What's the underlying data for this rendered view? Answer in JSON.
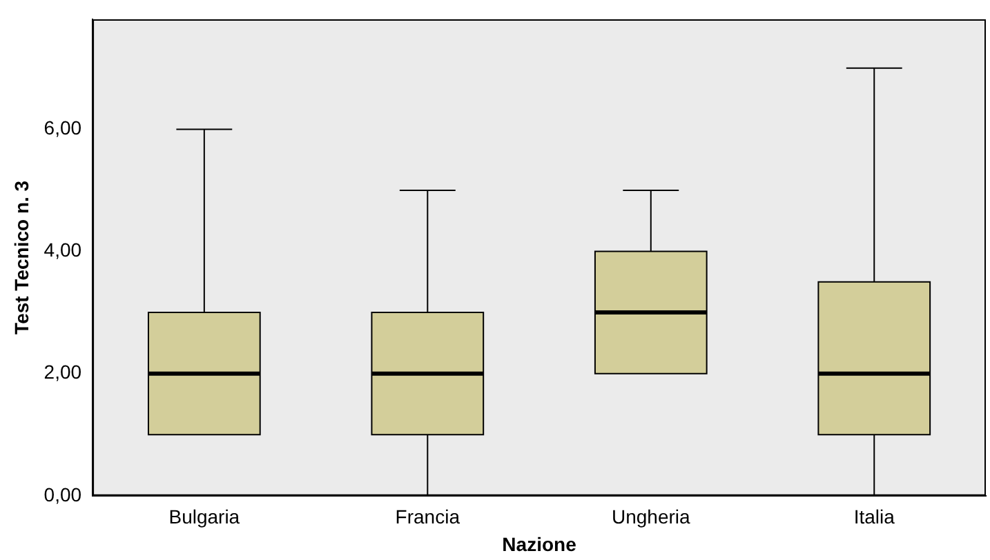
{
  "chart_data": {
    "type": "box",
    "xlabel": "Nazione",
    "ylabel": "Test Tecnico n. 3",
    "categories": [
      "Bulgaria",
      "Francia",
      "Ungheria",
      "Italia"
    ],
    "color": "#d3ce9a",
    "boxes": [
      {
        "low": 1,
        "q1": 1,
        "median": 2,
        "q3": 3,
        "high": 6
      },
      {
        "low": 0,
        "q1": 1,
        "median": 2,
        "q3": 3,
        "high": 5
      },
      {
        "low": 2,
        "q1": 2,
        "median": 3,
        "q3": 4,
        "high": 5
      },
      {
        "low": 0,
        "q1": 1,
        "median": 2,
        "q3": 3.5,
        "high": 7
      }
    ],
    "ylim": [
      0,
      7.8
    ],
    "yticks": [
      {
        "value": 0,
        "label": "0,00"
      },
      {
        "value": 2,
        "label": "2,00"
      },
      {
        "value": 4,
        "label": "4,00"
      },
      {
        "value": 6,
        "label": "6,00"
      }
    ]
  }
}
